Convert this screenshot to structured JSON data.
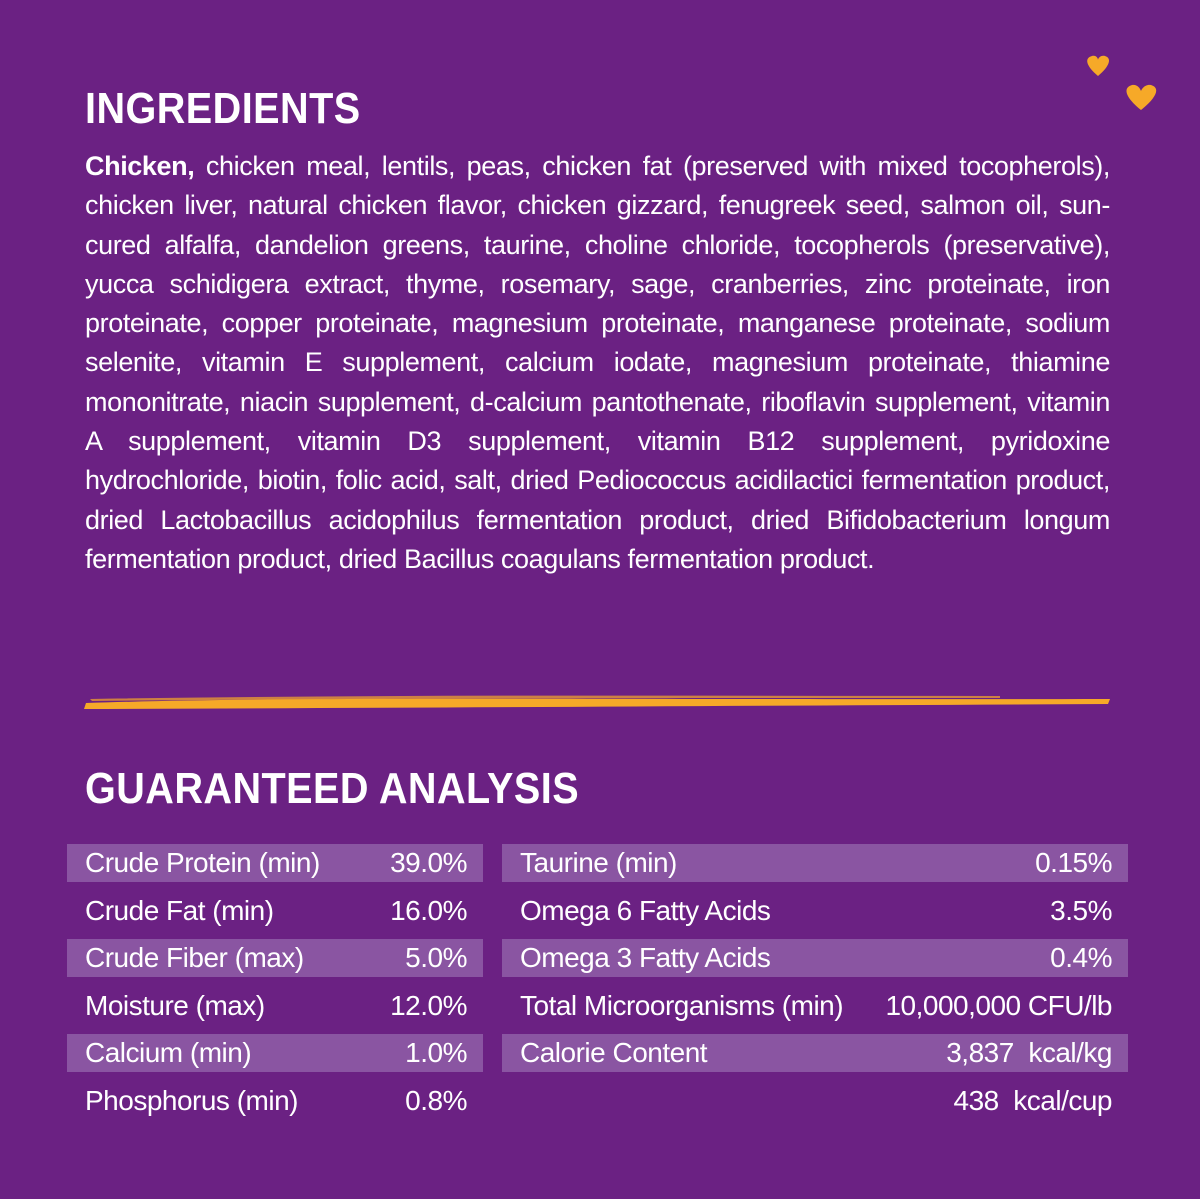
{
  "ingredients": {
    "title": "INGREDIENTS",
    "lead": "Chicken,",
    "text": "chicken meal, lentils, peas, chicken fat (preserved with mixed tocopherols), chicken liver, natural chicken flavor, chicken gizzard, fenugreek seed, salmon oil, sun-cured alfalfa, dandelion greens, taurine, choline chloride, tocopherols (preservative), yucca schidigera extract, thyme, rosemary, sage, cranberries, zinc proteinate, iron proteinate, copper proteinate, magnesium proteinate, manganese proteinate, sodium selenite, vitamin E supplement, calcium iodate, magnesium proteinate, thiamine mononitrate, niacin supplement, d-calcium pantothenate, riboflavin supplement, vitamin A supplement, vitamin D3 supplement, vitamin B12 supplement, pyridoxine hydrochloride, biotin, folic acid, salt, dried Pediococcus acidilactici fermentation product, dried Lactobacillus acidophilus fermentation product, dried Bifidobacterium longum fermentation product, dried Bacillus coagulans fermentation product."
  },
  "analysis": {
    "title": "GUARANTEED ANALYSIS",
    "left": [
      {
        "label": "Crude Protein (min)",
        "value": "39.0%"
      },
      {
        "label": "Crude Fat (min)",
        "value": "16.0%"
      },
      {
        "label": "Crude Fiber (max)",
        "value": "5.0%"
      },
      {
        "label": "Moisture (max)",
        "value": "12.0%"
      },
      {
        "label": "Calcium (min)",
        "value": "1.0%"
      },
      {
        "label": "Phosphorus (min)",
        "value": "0.8%"
      }
    ],
    "right": [
      {
        "label": "Taurine (min)",
        "value": "0.15%"
      },
      {
        "label": "Omega 6 Fatty Acids",
        "value": "3.5%"
      },
      {
        "label": "Omega 3 Fatty Acids",
        "value": "0.4%"
      },
      {
        "label": "Total Microorganisms (min)",
        "value": "10,000,000 CFU/lb"
      },
      {
        "label": "Calorie Content",
        "value": "3,837  kcal/kg"
      },
      {
        "value": "438  kcal/cup"
      }
    ]
  }
}
